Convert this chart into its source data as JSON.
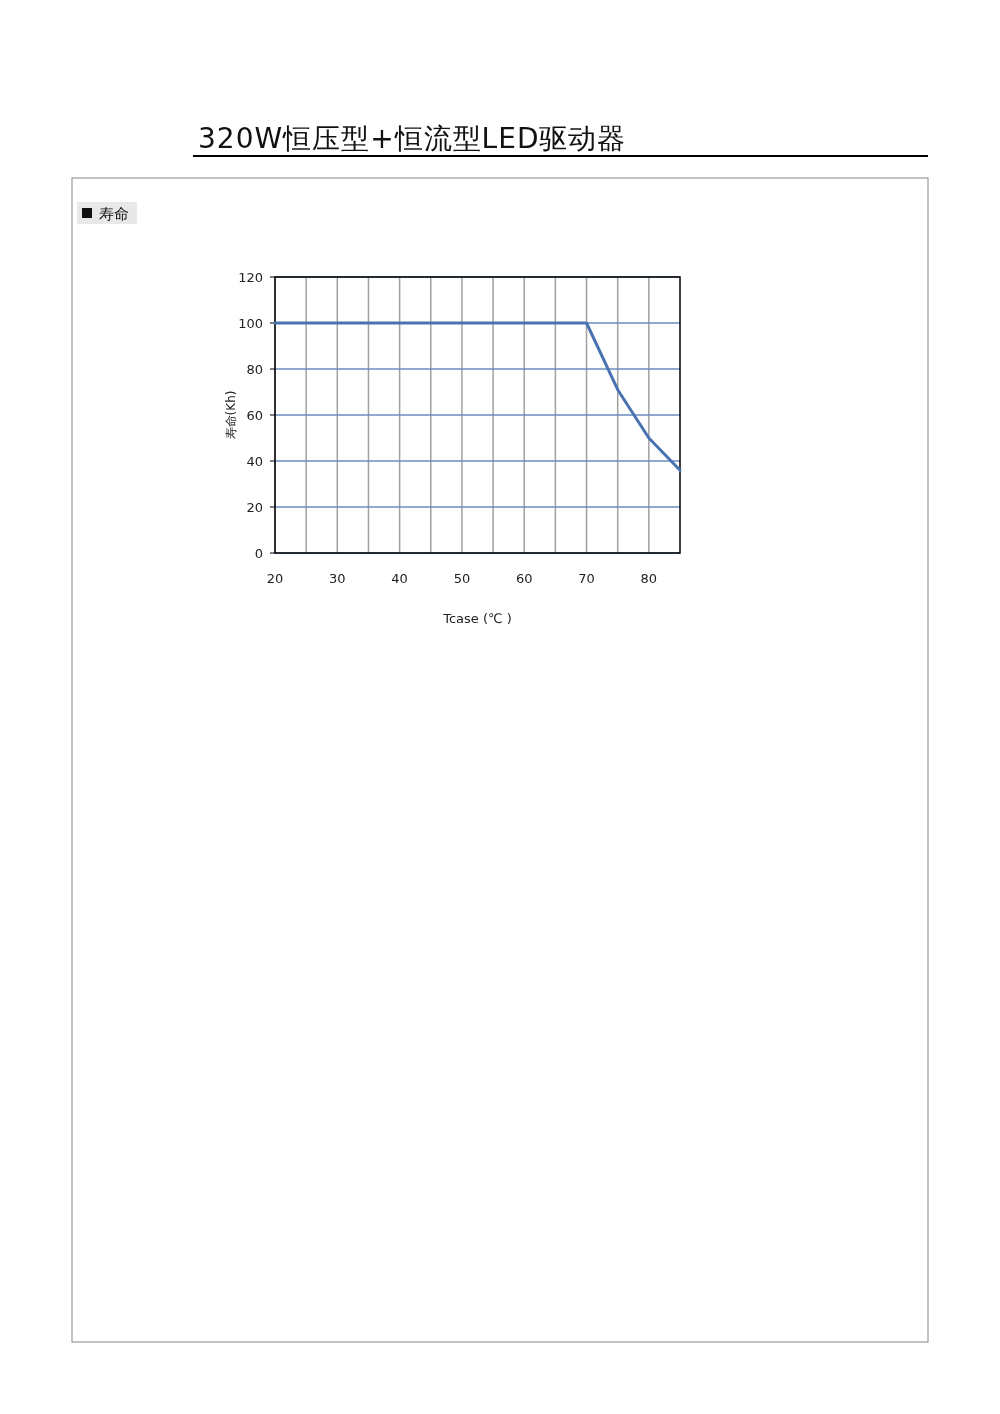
{
  "chart_data": {
    "type": "line",
    "title": "320W恒压型+恒流型LED驱动器",
    "subtitle": "寿命",
    "xlabel": "Tcase (℃ )",
    "ylabel": "寿命(Kh)",
    "x": [
      20,
      70,
      75,
      80,
      85
    ],
    "series": [
      {
        "color": "#4a72b0",
        "values": [
          100,
          100,
          71,
          50,
          36
        ]
      }
    ],
    "xlim": [
      20,
      85
    ],
    "ylim": [
      0,
      120
    ],
    "xticks": [
      20,
      {
        "value": 25,
        "label": null
      },
      30,
      {
        "value": 35,
        "label": null
      },
      40,
      {
        "value": 45,
        "label": null
      },
      50,
      {
        "value": 55,
        "label": null
      },
      60,
      {
        "value": 65,
        "label": null
      },
      70,
      {
        "value": 75,
        "label": null
      },
      80
    ],
    "yticks": [
      0,
      20,
      40,
      60,
      80,
      100,
      120
    ],
    "grid": true
  }
}
